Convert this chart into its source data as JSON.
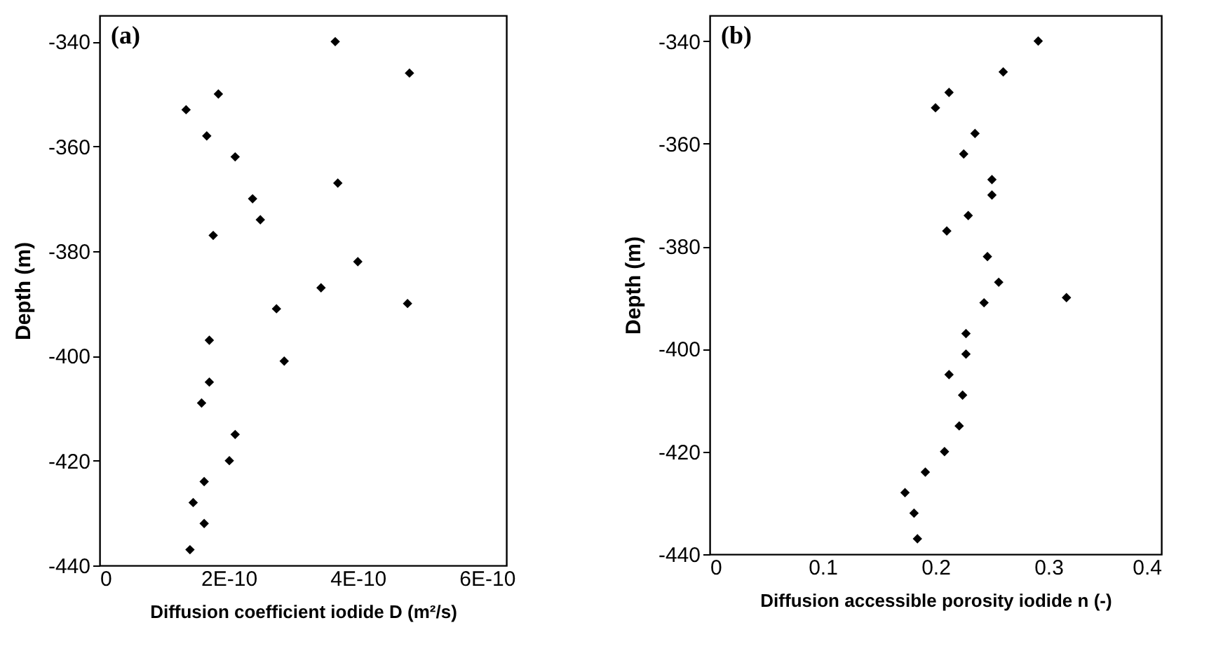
{
  "chart_data": [
    {
      "type": "scatter",
      "title": "(a)",
      "xlabel": "Diffusion coefficient iodide D  (m²/s)",
      "ylabel": "Depth (m)",
      "marker": "diamond",
      "grid": false,
      "xlim": [
        0,
        6.3e-10
      ],
      "xticks": [
        0,
        {
          "value": 2e-10,
          "label": "2E-10"
        },
        {
          "value": 4e-10,
          "label": "4E-10"
        },
        {
          "value": 6e-10,
          "label": "6E-10"
        }
      ],
      "ylim": [
        -440,
        -335
      ],
      "yticks": [
        -340,
        -360,
        -380,
        -400,
        -420,
        -440
      ],
      "series": [
        {
          "color": "#000000",
          "x": [
            3.65e-10,
            4.8e-10,
            1.84e-10,
            1.34e-10,
            1.66e-10,
            2.1e-10,
            3.69e-10,
            2.37e-10,
            2.49e-10,
            1.76e-10,
            4e-10,
            3.43e-10,
            2.74e-10,
            4.77e-10,
            1.7e-10,
            2.86e-10,
            1.7e-10,
            1.58e-10,
            2.1e-10,
            2.01e-10,
            1.62e-10,
            1.45e-10,
            1.62e-10,
            1.4e-10
          ],
          "values": [
            -340,
            -346,
            -350,
            -353,
            -358,
            -362,
            -367,
            -370,
            -374,
            -377,
            -382,
            -387,
            -391,
            -390,
            -397,
            -401,
            -405,
            -409,
            -415,
            -420,
            -424,
            -428,
            -432,
            -437
          ]
        }
      ]
    },
    {
      "type": "scatter",
      "title": "(b)",
      "xlabel": "Diffusion accessible porosity iodide n (-)",
      "ylabel": "Depth (m)",
      "marker": "diamond",
      "grid": false,
      "xlim": [
        0,
        0.4
      ],
      "xticks": [
        0,
        0.1,
        0.2,
        0.3,
        0.4
      ],
      "ylim": [
        -440,
        -335
      ],
      "yticks": [
        -340,
        -360,
        -380,
        -400,
        -420,
        -440
      ],
      "series": [
        {
          "color": "#000000",
          "x": [
            0.291,
            0.26,
            0.212,
            0.2,
            0.235,
            0.225,
            0.25,
            0.25,
            0.229,
            0.21,
            0.246,
            0.256,
            0.316,
            0.243,
            0.227,
            0.227,
            0.212,
            0.224,
            0.221,
            0.208,
            0.191,
            0.173,
            0.181,
            0.184
          ],
          "values": [
            -340,
            -346,
            -350,
            -353,
            -358,
            -362,
            -367,
            -370,
            -374,
            -377,
            -382,
            -387,
            -390,
            -391,
            -397,
            -401,
            -405,
            -409,
            -415,
            -420,
            -424,
            -428,
            -432,
            -437
          ]
        }
      ]
    }
  ]
}
